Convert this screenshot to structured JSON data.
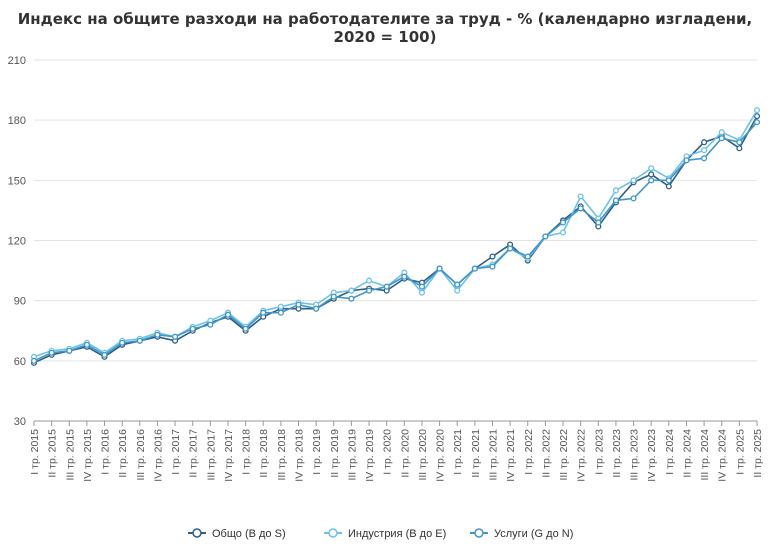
{
  "chart_data": {
    "type": "line",
    "title": "Индекс на общите разходи на работодателите за труд - % (календарно изгладени, 2020 = 100)",
    "xlabel": "",
    "ylabel": "",
    "ylim": [
      30,
      210
    ],
    "yticks": [
      30,
      60,
      90,
      120,
      150,
      180,
      210
    ],
    "grid": true,
    "legend_position": "bottom",
    "categories": [
      "I тр. 2015",
      "II тр. 2015",
      "III тр. 2015",
      "IV тр. 2015",
      "I тр. 2016",
      "II тр. 2016",
      "III тр. 2016",
      "IV тр. 2016",
      "I тр. 2017",
      "II тр. 2017",
      "III тр. 2017",
      "IV тр. 2017",
      "I тр. 2018",
      "II тр. 2018",
      "III тр. 2018",
      "IV тр. 2018",
      "I тр. 2019",
      "II тр. 2019",
      "III тр. 2019",
      "IV тр. 2019",
      "I тр. 2020",
      "II тр. 2020",
      "III тр. 2020",
      "IV тр. 2020",
      "I тр. 2021",
      "II тр. 2021",
      "III тр. 2021",
      "IV тр. 2021",
      "I тр. 2022",
      "II тр. 2022",
      "III тр. 2022",
      "IV тр. 2022",
      "I тр. 2023",
      "II тр. 2023",
      "III тр. 2023",
      "IV тр. 2023",
      "I тр. 2024",
      "II тр. 2024",
      "III тр. 2024",
      "IV тр. 2024",
      "I тр. 2025",
      "II тр. 2025"
    ],
    "series": [
      {
        "name": "Общо (B до S)",
        "color": "#2e5f86",
        "values": [
          59,
          63,
          65,
          67,
          62,
          68,
          70,
          72,
          70,
          75,
          79,
          82,
          75,
          82,
          86,
          86,
          86,
          91,
          95,
          96,
          95,
          101,
          99,
          106,
          98,
          106,
          112,
          118,
          110,
          122,
          130,
          137,
          127,
          139,
          149,
          153,
          147,
          160,
          169,
          172,
          166,
          182
        ]
      },
      {
        "name": "Индустрия (B до E)",
        "color": "#6cc3ea",
        "values": [
          62,
          65,
          66,
          69,
          64,
          70,
          71,
          74,
          72,
          77,
          80,
          84,
          77,
          85,
          87,
          89,
          88,
          94,
          95,
          100,
          97,
          104,
          94,
          106,
          95,
          106,
          108,
          116,
          111,
          122,
          124,
          142,
          131,
          145,
          150,
          156,
          151,
          162,
          165,
          174,
          170,
          185
        ]
      },
      {
        "name": "Услуги (G до N)",
        "color": "#3f96cc",
        "values": [
          60,
          64,
          65,
          68,
          63,
          69,
          70,
          73,
          72,
          76,
          78,
          83,
          76,
          84,
          84,
          88,
          86,
          92,
          91,
          95,
          97,
          102,
          97,
          106,
          98,
          106,
          107,
          116,
          112,
          122,
          129,
          136,
          129,
          140,
          141,
          150,
          150,
          160,
          161,
          171,
          169,
          179
        ]
      }
    ]
  }
}
